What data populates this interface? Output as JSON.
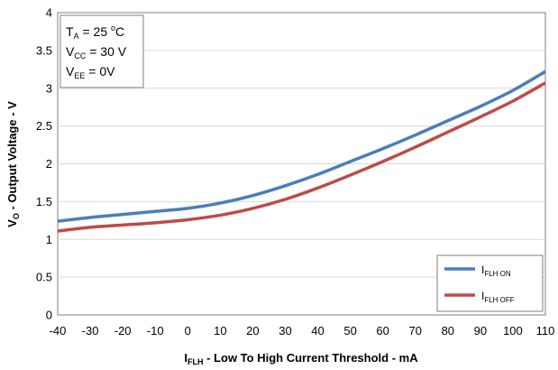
{
  "conditions": {
    "ta_main": "T",
    "ta_sub": "A",
    "ta_value": " = 25 ",
    "ta_deg": "o",
    "ta_unit": "C",
    "vcc_main": "V",
    "vcc_sub": "CC",
    "vcc_value": " = 30 V",
    "vee_main": "V",
    "vee_sub": "EE",
    "vee_value": " = 0V"
  },
  "xlabel": {
    "main": "I",
    "sub": "FLH",
    "rest": " - Low To High Current Threshold - mA"
  },
  "ylabel": {
    "main": "V",
    "sub": "O",
    "rest": " - Output Voltage - V"
  },
  "legend": [
    {
      "main": "I",
      "sub": "FLH ON",
      "color": "#4a7ebb"
    },
    {
      "main": "I",
      "sub": "FLH OFF",
      "color": "#be4b48"
    }
  ],
  "chart_data": {
    "type": "line",
    "xlim": [
      -40,
      110
    ],
    "ylim": [
      0,
      4
    ],
    "x_ticks": [
      "-40",
      "-30",
      "-20",
      "-10",
      "0",
      "10",
      "20",
      "30",
      "40",
      "50",
      "60",
      "70",
      "80",
      "90",
      "100",
      "110"
    ],
    "y_ticks": [
      "0",
      "0.5",
      "1",
      "1.5",
      "2",
      "2.5",
      "3",
      "3.5",
      "4"
    ],
    "grid": true,
    "legend_position": "bottom-right",
    "x": [
      -40,
      -30,
      -20,
      -10,
      0,
      10,
      20,
      30,
      40,
      50,
      60,
      70,
      80,
      90,
      100,
      110
    ],
    "series": [
      {
        "name": "IFLH ON",
        "color": "#4a7ebb",
        "values": [
          1.24,
          1.29,
          1.33,
          1.37,
          1.41,
          1.48,
          1.58,
          1.71,
          1.86,
          2.03,
          2.2,
          2.38,
          2.57,
          2.76,
          2.97,
          3.22
        ]
      },
      {
        "name": "IFLH OFF",
        "color": "#be4b48",
        "values": [
          1.11,
          1.16,
          1.19,
          1.22,
          1.26,
          1.32,
          1.41,
          1.53,
          1.68,
          1.85,
          2.03,
          2.22,
          2.42,
          2.62,
          2.83,
          3.07
        ]
      }
    ]
  }
}
